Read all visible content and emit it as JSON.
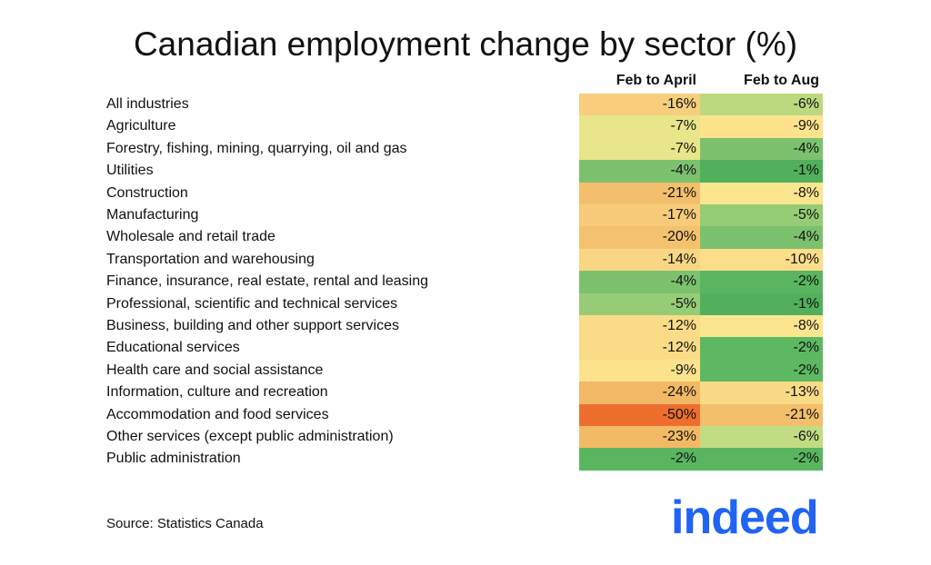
{
  "chart_data": {
    "type": "heatmap",
    "title": "Canadian employment change by sector (%)",
    "columns": [
      "Feb to April",
      "Feb to Aug"
    ],
    "rows": [
      {
        "label": "All industries",
        "values": [
          -16,
          -6
        ],
        "display": [
          "-16%",
          "-6%"
        ],
        "colors": [
          "#f6ce7c",
          "#bbd97f"
        ]
      },
      {
        "label": "Agriculture",
        "values": [
          -7,
          -9
        ],
        "display": [
          "-7%",
          "-9%"
        ],
        "colors": [
          "#e9e58a",
          "#fce38c"
        ]
      },
      {
        "label": "Forestry, fishing, mining, quarrying, oil and gas",
        "values": [
          -7,
          -4
        ],
        "display": [
          "-7%",
          "-4%"
        ],
        "colors": [
          "#e9e58a",
          "#7cc26e"
        ]
      },
      {
        "label": "Utilities",
        "values": [
          -4,
          -1
        ],
        "display": [
          "-4%",
          "-1%"
        ],
        "colors": [
          "#7cc26e",
          "#52b05d"
        ]
      },
      {
        "label": "Construction",
        "values": [
          -21,
          -8
        ],
        "display": [
          "-21%",
          "-8%"
        ],
        "colors": [
          "#f4bf6c",
          "#fce58f"
        ]
      },
      {
        "label": "Manufacturing",
        "values": [
          -17,
          -5
        ],
        "display": [
          "-17%",
          "-5%"
        ],
        "colors": [
          "#f7cb79",
          "#95cc75"
        ]
      },
      {
        "label": "Wholesale and retail trade",
        "values": [
          -20,
          -4
        ],
        "display": [
          "-20%",
          "-4%"
        ],
        "colors": [
          "#f4c26f",
          "#7cc26e"
        ]
      },
      {
        "label": "Transportation and warehousing",
        "values": [
          -14,
          -10
        ],
        "display": [
          "-14%",
          "-10%"
        ],
        "colors": [
          "#f9d684",
          "#fbdd8a"
        ]
      },
      {
        "label": "Finance, insurance, real estate, rental and leasing",
        "values": [
          -4,
          -2
        ],
        "display": [
          "-4%",
          "-2%"
        ],
        "colors": [
          "#7cc26e",
          "#5ab560"
        ]
      },
      {
        "label": "Professional, scientific and technical services",
        "values": [
          -5,
          -1
        ],
        "display": [
          "-5%",
          "-1%"
        ],
        "colors": [
          "#95cc75",
          "#52b05d"
        ]
      },
      {
        "label": "Business, building and other support services",
        "values": [
          -12,
          -8
        ],
        "display": [
          "-12%",
          "-8%"
        ],
        "colors": [
          "#fadc88",
          "#fce58f"
        ]
      },
      {
        "label": "Educational services",
        "values": [
          -12,
          -2
        ],
        "display": [
          "-12%",
          "-2%"
        ],
        "colors": [
          "#fadc88",
          "#5db862"
        ]
      },
      {
        "label": "Health care and social assistance",
        "values": [
          -9,
          -2
        ],
        "display": [
          "-9%",
          "-2%"
        ],
        "colors": [
          "#fce38c",
          "#5db862"
        ]
      },
      {
        "label": "Information, culture and recreation",
        "values": [
          -24,
          -13
        ],
        "display": [
          "-24%",
          "-13%"
        ],
        "colors": [
          "#f3b865",
          "#f9da86"
        ]
      },
      {
        "label": "Accommodation and food services",
        "values": [
          -50,
          -21
        ],
        "display": [
          "-50%",
          "-21%"
        ],
        "colors": [
          "#ee6e2e",
          "#f4bf6c"
        ]
      },
      {
        "label": "Other services (except public administration)",
        "values": [
          -23,
          -6
        ],
        "display": [
          "-23%",
          "-6%"
        ],
        "colors": [
          "#f3ba66",
          "#c2dc83"
        ]
      },
      {
        "label": "Public administration",
        "values": [
          -2,
          -2
        ],
        "display": [
          "-2%",
          "-2%"
        ],
        "colors": [
          "#5ab560",
          "#5ab560"
        ]
      }
    ]
  },
  "source": "Source: Statistics Canada",
  "logo": {
    "text": "indeed",
    "color": "#2164f3"
  }
}
